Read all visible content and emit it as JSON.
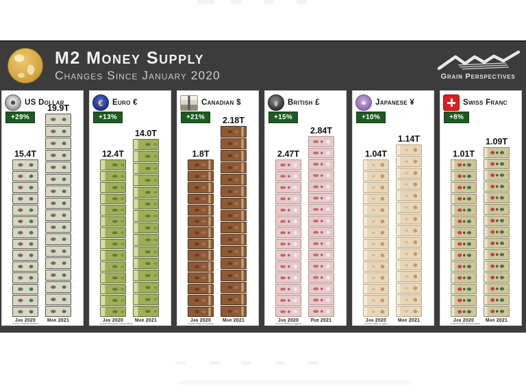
{
  "header": {
    "title": "M2 Money Supply",
    "subtitle": "Changes Since January 2020",
    "logo_text": "Grain Perspectives"
  },
  "colors": {
    "banner_bg": "#3d3c3c",
    "badge_green": "#1d5a21",
    "panel_bg": "#ffffff",
    "globe_gold": "#d3a43f",
    "swiss_red": "#da1d1d"
  },
  "panels": [
    {
      "id": "usd",
      "name": "US Dollar",
      "icon": "us-dollar-seal-coin-icon",
      "change": "+29%",
      "left_label": "15.4T",
      "right_label": "19.9T",
      "left_value": 15.4,
      "right_value": 19.9,
      "left_date": "Jan 2020",
      "right_date": "Mar 2021",
      "source": "Source: Federal Reserve"
    },
    {
      "id": "eur",
      "name": "Euro €",
      "icon": "euro-coin-icon",
      "change": "+13%",
      "left_label": "12.4T",
      "right_label": "14.0T",
      "left_value": 12.4,
      "right_value": 14.0,
      "left_date": "Jan 2020",
      "right_date": "Mar 2021",
      "source": "Source: European Central Bank"
    },
    {
      "id": "cad",
      "name": "Canadian $",
      "icon": "canada-parliament-icon",
      "change": "+21%",
      "left_label": "1.8T",
      "right_label": "2.18T",
      "left_value": 1.8,
      "right_value": 2.18,
      "left_date": "Jan 2020",
      "right_date": "Mar 2021",
      "source": "Source: Bank of Canada"
    },
    {
      "id": "gbp",
      "name": "British £",
      "icon": "british-pound-coin-icon",
      "change": "+15%",
      "left_label": "2.47T",
      "right_label": "2.84T",
      "left_value": 2.47,
      "right_value": 2.84,
      "left_date": "Jan 2020",
      "right_date": "Feb 2021",
      "source": "Source: Bank of England"
    },
    {
      "id": "jpy",
      "name": "Japanese ¥",
      "icon": "japanese-yen-coin-icon",
      "change": "+10%",
      "left_label": "1.04T",
      "right_label": "1.14T",
      "left_value": 1.04,
      "right_value": 1.14,
      "left_date": "Jan 2020",
      "right_date": "Mar 2021",
      "source": "Source: Bank of Japan"
    },
    {
      "id": "chf",
      "name": "Swiss Franc",
      "icon": "swiss-flag-icon",
      "change": "+8%",
      "left_label": "1.01T",
      "right_label": "1.09T",
      "left_value": 1.01,
      "right_value": 1.09,
      "left_date": "Jan 2020",
      "right_date": "Mar 2021",
      "source": "Source: Swiss National Bank"
    }
  ],
  "chart_data": {
    "type": "bar",
    "title": "M2 Money Supply — Changes Since January 2020",
    "unit": "trillions of local currency",
    "legend_position": "none",
    "grid": false,
    "series": [
      {
        "name": "US Dollar",
        "categories": [
          "Jan 2020",
          "Mar 2021"
        ],
        "values": [
          15.4,
          19.9
        ],
        "change_pct": 29
      },
      {
        "name": "Euro",
        "categories": [
          "Jan 2020",
          "Mar 2021"
        ],
        "values": [
          12.4,
          14.0
        ],
        "change_pct": 13
      },
      {
        "name": "Canadian $",
        "categories": [
          "Jan 2020",
          "Mar 2021"
        ],
        "values": [
          1.8,
          2.18
        ],
        "change_pct": 21
      },
      {
        "name": "British £",
        "categories": [
          "Jan 2020",
          "Feb 2021"
        ],
        "values": [
          2.47,
          2.84
        ],
        "change_pct": 15
      },
      {
        "name": "Japanese ¥",
        "categories": [
          "Jan 2020",
          "Mar 2021"
        ],
        "values": [
          1.04,
          1.14
        ],
        "change_pct": 10
      },
      {
        "name": "Swiss Franc",
        "categories": [
          "Jan 2020",
          "Mar 2021"
        ],
        "values": [
          1.01,
          1.09
        ],
        "change_pct": 8
      }
    ]
  }
}
